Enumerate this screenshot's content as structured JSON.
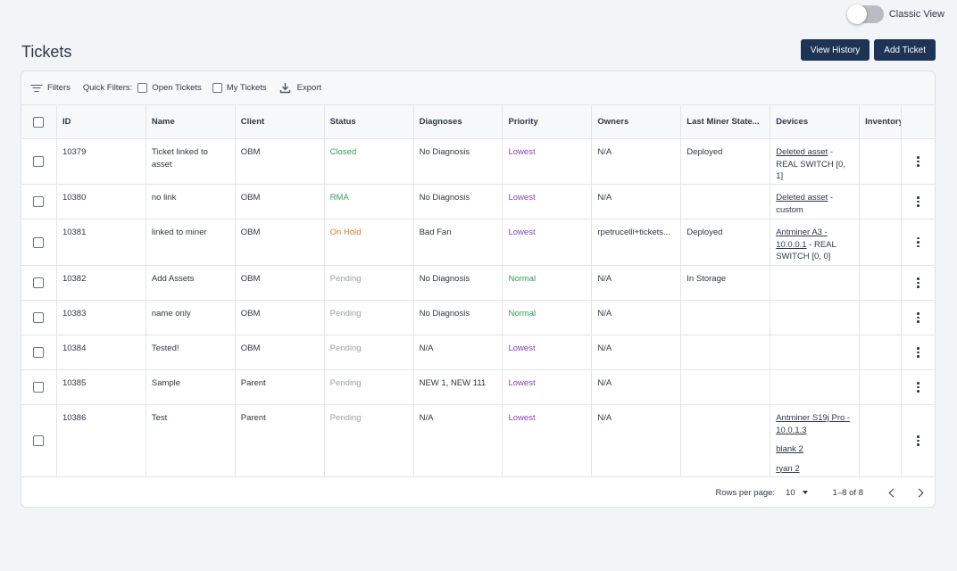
{
  "view_toggle": {
    "label": "Classic View"
  },
  "page": {
    "title": "Tickets"
  },
  "actions": {
    "view_history": "View History",
    "add_ticket": "Add Ticket"
  },
  "toolbar": {
    "filters": "Filters",
    "quick_filters": "Quick Filters:",
    "open_tickets": "Open Tickets",
    "my_tickets": "My Tickets",
    "export": "Export"
  },
  "columns": [
    "ID",
    "Name",
    "Client",
    "Status",
    "Diagnoses",
    "Priority",
    "Owners",
    "Last Miner State...",
    "Devices",
    "Inventory"
  ],
  "rows": [
    {
      "id": "10379",
      "name": "Ticket linked to asset",
      "client": "OBM",
      "status": "Closed",
      "status_style": "green",
      "diagnoses": "No Diagnosis",
      "priority": "Lowest",
      "priority_style": "purple",
      "owners": "N/A",
      "last_state": "Deployed",
      "devices": [
        {
          "link": "Deleted asset",
          "rest": " - REAL SWITCH [0, 1]"
        }
      ]
    },
    {
      "id": "10380",
      "name": "no link",
      "client": "OBM",
      "status": "RMA",
      "status_style": "green",
      "diagnoses": "No Diagnosis",
      "priority": "Lowest",
      "priority_style": "purple",
      "owners": "N/A",
      "last_state": "",
      "devices": [
        {
          "link": "Deleted asset",
          "rest": " - custom"
        }
      ]
    },
    {
      "id": "10381",
      "name": "linked to miner",
      "client": "OBM",
      "status": "On Hold",
      "status_style": "orange",
      "diagnoses": "Bad Fan",
      "priority": "Lowest",
      "priority_style": "purple",
      "owners": "rpetrucelli+tickets...",
      "last_state": "Deployed",
      "devices": [
        {
          "link": "Antminer A3 - 10.0.0.1",
          "rest": " - REAL SWITCH [0, 0]"
        }
      ]
    },
    {
      "id": "10382",
      "name": "Add Assets",
      "client": "OBM",
      "status": "Pending",
      "status_style": "gray",
      "diagnoses": "No Diagnosis",
      "priority": "Normal",
      "priority_style": "green",
      "owners": "N/A",
      "last_state": "In Storage",
      "devices": []
    },
    {
      "id": "10383",
      "name": "name only",
      "client": "OBM",
      "status": "Pending",
      "status_style": "gray",
      "diagnoses": "No Diagnosis",
      "priority": "Normal",
      "priority_style": "green",
      "owners": "N/A",
      "last_state": "",
      "devices": []
    },
    {
      "id": "10384",
      "name": "Tested!",
      "client": "OBM",
      "status": "Pending",
      "status_style": "gray",
      "diagnoses": "N/A",
      "priority": "Lowest",
      "priority_style": "purple",
      "owners": "N/A",
      "last_state": "",
      "devices": []
    },
    {
      "id": "10385",
      "name": "Sample",
      "client": "Parent",
      "status": "Pending",
      "status_style": "gray",
      "diagnoses": "NEW 1, NEW 111",
      "priority": "Lowest",
      "priority_style": "purple",
      "owners": "N/A",
      "last_state": "",
      "devices": []
    },
    {
      "id": "10386",
      "name": "Test",
      "client": "Parent",
      "status": "Pending",
      "status_style": "gray",
      "diagnoses": "N/A",
      "priority": "Lowest",
      "priority_style": "purple",
      "owners": "N/A",
      "last_state": "",
      "devices": [
        {
          "link": "Antminer S19j Pro - 10.0.1.3",
          "rest": ""
        },
        {
          "link": "blank 2",
          "rest": ""
        },
        {
          "link": "ryan 2",
          "rest": ""
        }
      ]
    }
  ],
  "pagination": {
    "rows_per_page_label": "Rows per page:",
    "rows_per_page": "10",
    "range": "1–8 of 8"
  },
  "colors": {
    "primary": "#1e3456",
    "status_green": "#2f9e58",
    "status_orange": "#de7b22",
    "status_gray": "#9aa0aa",
    "priority_purple": "#8a42b8"
  }
}
